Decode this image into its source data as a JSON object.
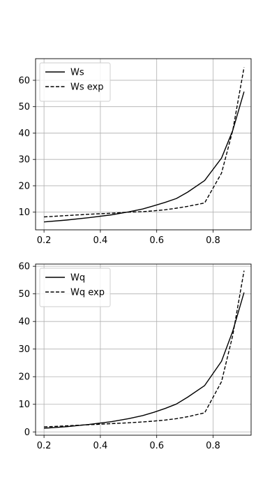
{
  "chart_data": [
    {
      "type": "line",
      "title": "",
      "xlabel": "",
      "ylabel": "",
      "xlim": [
        0.17,
        0.935
      ],
      "ylim": [
        3.3,
        68.2
      ],
      "xticks": [
        0.2,
        0.4,
        0.6,
        0.8
      ],
      "xtick_labels": [
        "0.2",
        "0.4",
        "0.6",
        "0.8"
      ],
      "yticks": [
        10,
        20,
        30,
        40,
        50,
        60
      ],
      "ytick_labels": [
        "10",
        "20",
        "30",
        "40",
        "50",
        "60"
      ],
      "grid": true,
      "legend_position": "upper-left",
      "series": [
        {
          "name": "Ws",
          "style": "solid",
          "x": [
            0.2,
            0.28,
            0.36,
            0.44,
            0.5,
            0.55,
            0.59,
            0.63,
            0.67,
            0.71,
            0.77,
            0.83,
            0.87,
            0.91
          ],
          "y": [
            6.3,
            7.0,
            7.9,
            9.0,
            10.1,
            11.2,
            12.4,
            13.7,
            15.2,
            17.6,
            22.0,
            30.5,
            41.0,
            55.7
          ]
        },
        {
          "name": "Ws exp",
          "style": "dashed",
          "x": [
            0.2,
            0.28,
            0.36,
            0.44,
            0.5,
            0.55,
            0.59,
            0.63,
            0.67,
            0.71,
            0.77,
            0.83,
            0.87,
            0.91
          ],
          "y": [
            8.2,
            8.7,
            9.2,
            9.6,
            10.0,
            10.2,
            10.5,
            10.9,
            11.5,
            12.2,
            13.5,
            24.8,
            41.0,
            64.9
          ]
        }
      ]
    },
    {
      "type": "line",
      "title": "",
      "xlabel": "",
      "ylabel": "",
      "xlim": [
        0.17,
        0.935
      ],
      "ylim": [
        -1.2,
        60.8
      ],
      "xticks": [
        0.2,
        0.4,
        0.6,
        0.8
      ],
      "xtick_labels": [
        "0.2",
        "0.4",
        "0.6",
        "0.8"
      ],
      "yticks": [
        0,
        10,
        20,
        30,
        40,
        50,
        60
      ],
      "ytick_labels": [
        "0",
        "10",
        "20",
        "30",
        "40",
        "50",
        "60"
      ],
      "grid": true,
      "legend_position": "upper-left",
      "series": [
        {
          "name": "Wq",
          "style": "solid",
          "x": [
            0.2,
            0.28,
            0.36,
            0.44,
            0.5,
            0.55,
            0.59,
            0.63,
            0.67,
            0.71,
            0.77,
            0.83,
            0.87,
            0.91
          ],
          "y": [
            1.3,
            1.9,
            2.7,
            3.7,
            4.8,
            5.9,
            7.1,
            8.5,
            10.1,
            12.6,
            16.8,
            25.6,
            36.5,
            50.5
          ]
        },
        {
          "name": "Wq exp",
          "style": "dashed",
          "x": [
            0.2,
            0.28,
            0.36,
            0.44,
            0.5,
            0.55,
            0.59,
            0.63,
            0.67,
            0.71,
            0.77,
            0.83,
            0.87,
            0.91
          ],
          "y": [
            1.8,
            2.2,
            2.6,
            3.0,
            3.3,
            3.6,
            3.9,
            4.3,
            4.8,
            5.5,
            6.9,
            18.2,
            35.0,
            58.4
          ]
        }
      ]
    }
  ]
}
